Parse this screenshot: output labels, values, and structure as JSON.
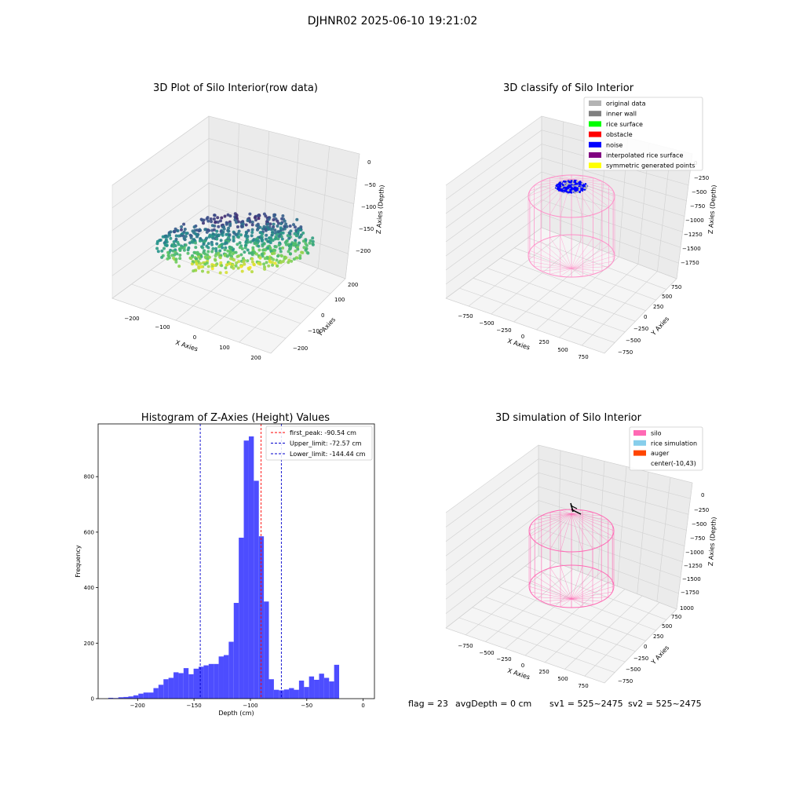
{
  "figure_title": "DJHNR02 2025-06-10 19:21:02",
  "status": {
    "flag": "flag = 23",
    "avg_depth": "avgDepth = 0 cm",
    "sv1": "sv1 = 525~2475",
    "sv2": "sv2 = 525~2475"
  },
  "chart_data": [
    {
      "type": "scatter",
      "title": "3D Plot of Silo Interior(row data)",
      "xlabel": "X Axies",
      "ylabel": "Y Axies",
      "zlabel": "Z Axies (Depth)",
      "xticks": [
        "−200",
        "−100",
        "0",
        "100",
        "200"
      ],
      "yticks": [
        "−200",
        "−100",
        "0",
        "100",
        "200"
      ],
      "zticks": [
        "0",
        "−50",
        "−100",
        "−150",
        "−200"
      ],
      "xlim": [
        -230,
        230
      ],
      "ylim": [
        -230,
        230
      ],
      "zlim": [
        -225,
        0
      ],
      "colormap": "viridis"
    },
    {
      "type": "scatter",
      "title": "3D classify of Silo Interior",
      "xlabel": "X Axies",
      "ylabel": "Y Axies",
      "zlabel": "Z Axies (Depth)",
      "xticks": [
        "−750",
        "−500",
        "−250",
        "0",
        "250",
        "500",
        "750"
      ],
      "yticks": [
        "−750",
        "−500",
        "−250",
        "0",
        "250",
        "500",
        "750"
      ],
      "zticks": [
        "0",
        "−250",
        "−500",
        "−750",
        "−1000",
        "−1250",
        "−1500",
        "−1750"
      ],
      "legend": [
        {
          "label": "original data",
          "color": "#b3b3b3"
        },
        {
          "label": "inner wall",
          "color": "#808080"
        },
        {
          "label": "rice surface",
          "color": "#00ff00"
        },
        {
          "label": "obstacle",
          "color": "#ff0000"
        },
        {
          "label": "noise",
          "color": "#0000ff"
        },
        {
          "label": "interpolated rice surface",
          "color": "#800080"
        },
        {
          "label": "symmetric generated points",
          "color": "#ffff00"
        }
      ],
      "legend_placement": "top-right"
    },
    {
      "type": "bar",
      "title": "Histogram of Z-Axies (Height) Values",
      "xlabel": "Depth (cm)",
      "ylabel": "Frequency",
      "xlim": [
        -235,
        10
      ],
      "ylim": [
        0,
        990
      ],
      "xticks": [
        -200,
        -150,
        -100,
        -50,
        0
      ],
      "xtick_labels": [
        "−200",
        "−150",
        "−100",
        "−50",
        "0"
      ],
      "yticks": [
        0,
        200,
        400,
        600,
        800
      ],
      "bin_start": -226,
      "bin_width": 4.45,
      "values": [
        3,
        2,
        5,
        6,
        8,
        12,
        18,
        22,
        22,
        38,
        50,
        70,
        75,
        95,
        92,
        110,
        88,
        108,
        115,
        120,
        125,
        125,
        152,
        157,
        205,
        345,
        580,
        930,
        945,
        785,
        585,
        350,
        70,
        32,
        30,
        33,
        38,
        32,
        65,
        42,
        80,
        68,
        90,
        75,
        62,
        122
      ],
      "bar_color": "#4d4dff",
      "lines": [
        {
          "label": "first_peak: -90.54 cm",
          "x": -90.54,
          "color": "#ff0000"
        },
        {
          "label": "Upper_limit: -72.57 cm",
          "x": -72.57,
          "color": "#0000cc"
        },
        {
          "label": "Lower_limit: -144.44 cm",
          "x": -144.44,
          "color": "#0000cc"
        }
      ],
      "legend_placement": "top-right"
    },
    {
      "type": "scatter",
      "title": "3D simulation of Silo Interior",
      "xlabel": "X Axies",
      "ylabel": "Y Axies",
      "zlabel": "Z Axies (Depth)",
      "xticks": [
        "−750",
        "−500",
        "−250",
        "0",
        "250",
        "500",
        "750"
      ],
      "yticks": [
        "−750",
        "−500",
        "−250",
        "0",
        "250",
        "500",
        "750",
        "1000"
      ],
      "zticks": [
        "0",
        "−250",
        "−500",
        "−750",
        "−1000",
        "−1250",
        "−1500",
        "−1750"
      ],
      "legend": [
        {
          "label": "silo",
          "color": "#ff69b4"
        },
        {
          "label": "rice simulation",
          "color": "#87ceeb"
        },
        {
          "label": "auger",
          "color": "#ff4500"
        },
        {
          "label": "center(-10,43)",
          "color": ""
        }
      ],
      "legend_placement": "top-right"
    }
  ]
}
